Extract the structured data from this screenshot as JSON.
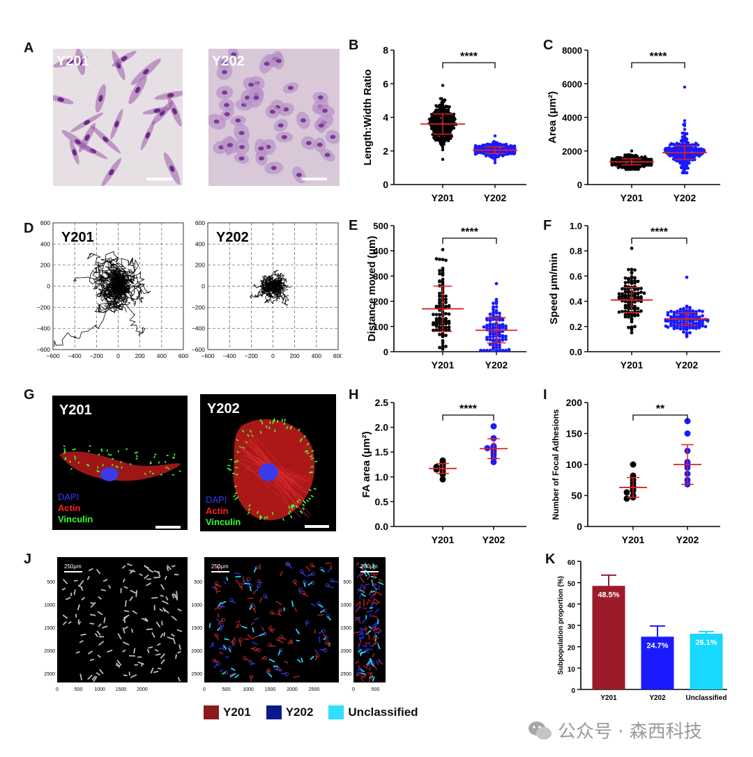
{
  "panels": {
    "A": {
      "letter": "A",
      "images": [
        "Y201",
        "Y202"
      ]
    },
    "D": {
      "letter": "D",
      "images": [
        "Y201",
        "Y202"
      ],
      "ticks": [
        "600",
        "400",
        "200",
        "0",
        "−200",
        "−400",
        "−600"
      ],
      "xticks": [
        "−600",
        "−400",
        "−200",
        "0",
        "200",
        "400",
        "600"
      ]
    },
    "G": {
      "letter": "G",
      "images": [
        "Y201",
        "Y202"
      ],
      "stains": [
        "DAPI",
        "Actin",
        "Vinculin"
      ]
    },
    "J": {
      "letter": "J",
      "scale": "250μm",
      "yticks": [
        "500",
        "1000",
        "1500",
        "2000",
        "2500"
      ],
      "xticks": [
        "0",
        "500",
        "1000",
        "1500",
        "2000"
      ],
      "xticks2": [
        "0",
        "500",
        "1000",
        "1500",
        "2000",
        "2500"
      ]
    }
  },
  "legend": {
    "items": [
      {
        "label": "Y201",
        "color": "#8b1a1a"
      },
      {
        "label": "Y202",
        "color": "#0a1a8a"
      },
      {
        "label": "Unclassified",
        "color": "#2ee0ff"
      }
    ]
  },
  "watermark": "公众号 · 森西科技",
  "chart_data": [
    {
      "panel": "B",
      "type": "scatter",
      "ylabel": "Length:Width Ratio",
      "categories": [
        "Y201",
        "Y202"
      ],
      "ylim": [
        0,
        8
      ],
      "yticks": [
        0,
        2,
        4,
        6,
        8
      ],
      "significance": "****",
      "series": [
        {
          "name": "Y201",
          "mean": 3.6,
          "sd": 0.6,
          "min": 1.5,
          "max": 5.9
        },
        {
          "name": "Y202",
          "mean": 2.05,
          "sd": 0.2,
          "min": 1.3,
          "max": 2.9
        }
      ]
    },
    {
      "panel": "C",
      "type": "scatter",
      "ylabel": "Area (μm²)",
      "categories": [
        "Y201",
        "Y202"
      ],
      "ylim": [
        0,
        8000
      ],
      "yticks": [
        0,
        2000,
        4000,
        6000,
        8000
      ],
      "significance": "****",
      "series": [
        {
          "name": "Y201",
          "mean": 1350,
          "sd": 180,
          "min": 900,
          "max": 2000
        },
        {
          "name": "Y202",
          "mean": 1900,
          "sd": 400,
          "min": 700,
          "max": 5800
        }
      ]
    },
    {
      "panel": "E",
      "type": "scatter",
      "ylabel": "Distance moved (μm)",
      "categories": [
        "Y201",
        "Y202"
      ],
      "ylim": [
        0,
        500
      ],
      "yticks": [
        0,
        100,
        200,
        300,
        400,
        500
      ],
      "significance": "****",
      "series": [
        {
          "name": "Y201",
          "mean": 170,
          "sd": 90,
          "min": 10,
          "max": 405
        },
        {
          "name": "Y202",
          "mean": 85,
          "sd": 50,
          "min": 5,
          "max": 270
        }
      ]
    },
    {
      "panel": "F",
      "type": "scatter",
      "ylabel": "Speed μm/min",
      "categories": [
        "Y201",
        "Y202"
      ],
      "ylim": [
        0,
        1.0
      ],
      "yticks": [
        0.0,
        0.2,
        0.4,
        0.6,
        0.8,
        1.0
      ],
      "significance": "****",
      "series": [
        {
          "name": "Y201",
          "mean": 0.41,
          "sd": 0.1,
          "min": 0.15,
          "max": 0.82
        },
        {
          "name": "Y202",
          "mean": 0.26,
          "sd": 0.05,
          "min": 0.12,
          "max": 0.59
        }
      ]
    },
    {
      "panel": "H",
      "type": "scatter",
      "ylabel": "FA area (μm²)",
      "categories": [
        "Y201",
        "Y202"
      ],
      "ylim": [
        0,
        2.5
      ],
      "yticks": [
        0.0,
        0.5,
        1.0,
        1.5,
        2.0,
        2.5
      ],
      "significance": "****",
      "series": [
        {
          "name": "Y201",
          "mean": 1.17,
          "sd": 0.1,
          "points": [
            1.33,
            1.3,
            1.25,
            1.22,
            1.2,
            1.18,
            1.15,
            1.12,
            1.08,
            1.05,
            0.95
          ]
        },
        {
          "name": "Y202",
          "mean": 1.57,
          "sd": 0.2,
          "points": [
            2.02,
            1.78,
            1.62,
            1.6,
            1.58,
            1.55,
            1.5,
            1.45,
            1.38,
            1.3
          ]
        }
      ]
    },
    {
      "panel": "I",
      "type": "scatter",
      "ylabel": "Number of Focal Adhesions",
      "categories": [
        "Y201",
        "Y202"
      ],
      "ylim": [
        0,
        200
      ],
      "yticks": [
        0,
        50,
        100,
        150,
        200
      ],
      "significance": "**",
      "series": [
        {
          "name": "Y201",
          "mean": 63,
          "sd": 16,
          "points": [
            100,
            82,
            75,
            70,
            65,
            60,
            58,
            55,
            50,
            47,
            45
          ]
        },
        {
          "name": "Y202",
          "mean": 100,
          "sd": 32,
          "points": [
            170,
            150,
            122,
            104,
            100,
            95,
            85,
            75,
            68
          ]
        }
      ]
    },
    {
      "panel": "K",
      "type": "bar",
      "ylabel": "Subpopulation proportion (%)",
      "categories": [
        "Y201",
        "Y202",
        "Unclassified"
      ],
      "values": [
        48.5,
        24.7,
        26.1
      ],
      "errors": [
        5,
        5,
        1
      ],
      "labels": [
        "48.5%",
        "24.7%",
        "26.1%"
      ],
      "colors": [
        "#9b1b2a",
        "#1a1aff",
        "#17d8ff"
      ],
      "ylim": [
        0,
        60
      ],
      "yticks": [
        0,
        10,
        20,
        30,
        40,
        50,
        60
      ]
    }
  ]
}
